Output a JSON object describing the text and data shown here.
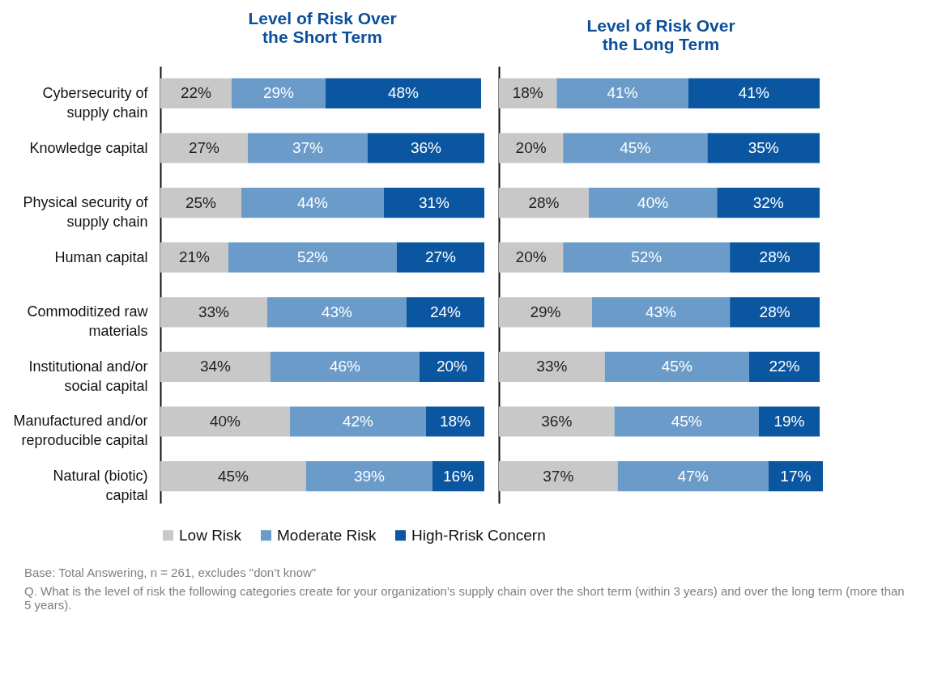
{
  "chart_data": [
    {
      "type": "bar",
      "orientation": "horizontal",
      "stacked": true,
      "title": "Level of Risk Over the Short Term",
      "categories": [
        "Cybersecurity of supply chain",
        "Knowledge capital",
        "Physical security of supply chain",
        "Human capital",
        "Commoditized raw materials",
        "Institutional and/or social capital",
        "Manufactured and/or reproducible capital",
        "Natural (biotic) capital"
      ],
      "series": [
        {
          "name": "Low Risk",
          "color": "#c8c8c8",
          "values": [
            22,
            27,
            25,
            21,
            33,
            34,
            40,
            45
          ],
          "value_labels": [
            "22%",
            "27%",
            "25%",
            "21%",
            "33%",
            "34%",
            "40%",
            "45%"
          ]
        },
        {
          "name": "Moderate Risk",
          "color": "#6a9bc9",
          "values": [
            29,
            37,
            44,
            52,
            43,
            46,
            42,
            39
          ],
          "value_labels": [
            "29%",
            "37%",
            "44%",
            "52%",
            "43%",
            "46%",
            "42%",
            "39%"
          ]
        },
        {
          "name": "High-Rrisk Concern",
          "color": "#0b56a0",
          "values": [
            48,
            36,
            31,
            27,
            24,
            20,
            18,
            16
          ],
          "value_labels": [
            "48%",
            "36%",
            "31%",
            "27%",
            "24%",
            "20%",
            "18%",
            "16%"
          ]
        }
      ],
      "legend": "bottom",
      "tick_labels": "y",
      "annotations": [
        "Base:  Total Answering, n = 261, excludes \"don’t know\"",
        "Q. What is the level of risk the following categories create for your organization's supply chain over the short term (within 3 years) and over the long term (more than 5 years)."
      ]
    },
    {
      "type": "bar",
      "orientation": "horizontal",
      "stacked": true,
      "title": "Level of Risk Over the Long Term",
      "categories": [
        "Cybersecurity of supply chain",
        "Knowledge capital",
        "Physical security of supply chain",
        "Human capital",
        "Commoditized raw materials",
        "Institutional and/or social capital",
        "Manufactured and/or reproducible capital",
        "Natural (biotic) capital"
      ],
      "series": [
        {
          "name": "Low Risk",
          "color": "#c8c8c8",
          "values": [
            18,
            20,
            28,
            20,
            29,
            33,
            36,
            37
          ],
          "value_labels": [
            "18%",
            "20%",
            "28%",
            "20%",
            "29%",
            "33%",
            "36%",
            "37%"
          ]
        },
        {
          "name": "Moderate Risk",
          "color": "#6a9bc9",
          "values": [
            41,
            45,
            40,
            52,
            43,
            45,
            45,
            47
          ],
          "value_labels": [
            "41%",
            "45%",
            "40%",
            "52%",
            "43%",
            "45%",
            "45%",
            "47%"
          ]
        },
        {
          "name": "High-Rrisk Concern",
          "color": "#0b56a0",
          "values": [
            41,
            35,
            32,
            28,
            28,
            22,
            19,
            17
          ],
          "value_labels": [
            "41%",
            "35%",
            "32%",
            "28%",
            "28%",
            "22%",
            "19%",
            "17%"
          ]
        }
      ],
      "legend": "bottom",
      "tick_labels": false
    }
  ]
}
